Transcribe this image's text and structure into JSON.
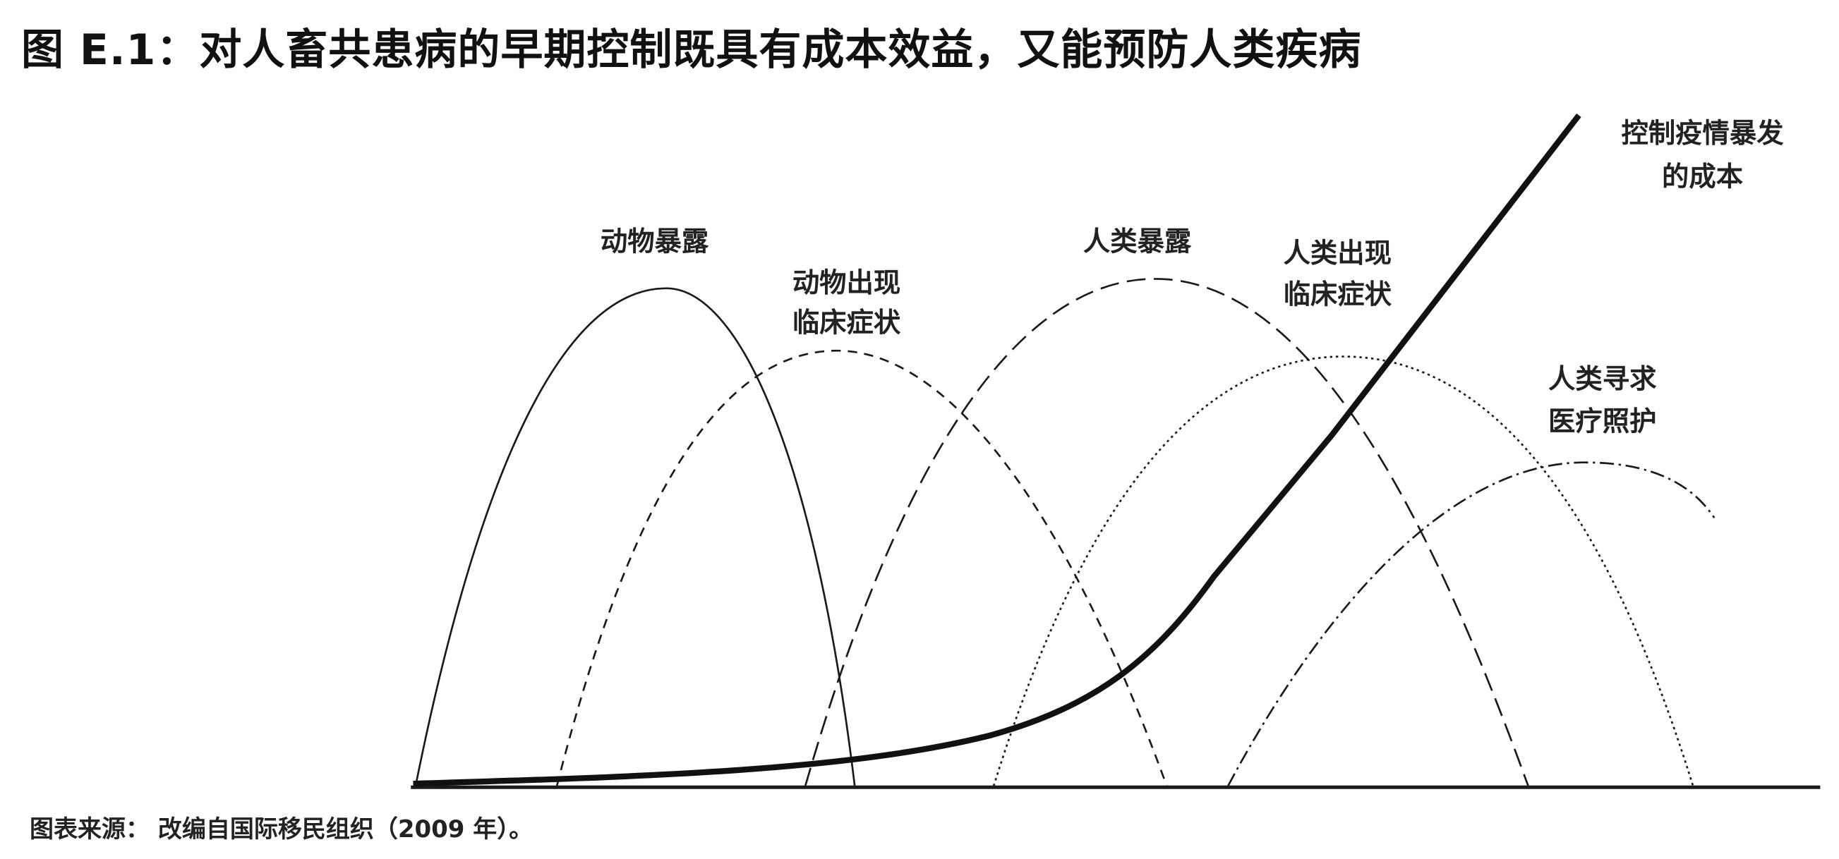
{
  "title": "图 E.1：对人畜共患病的早期控制既具有成本效益，又能预防人类疾病",
  "source": "图表来源： 改编自国际移民组织（2009 年）。",
  "labels": {
    "animal_exposure": "动物暴露",
    "animal_clinical_1": "动物出现",
    "animal_clinical_2": "临床症状",
    "human_exposure": "人类暴露",
    "human_clinical_1": "人类出现",
    "human_clinical_2": "临床症状",
    "seek_care_1": "人类寻求",
    "seek_care_2": "医疗照护",
    "cost_1": "控制疫情暴发",
    "cost_2": "的成本"
  },
  "colors": {
    "line": "#1a1a1a",
    "text": "#222222"
  }
}
